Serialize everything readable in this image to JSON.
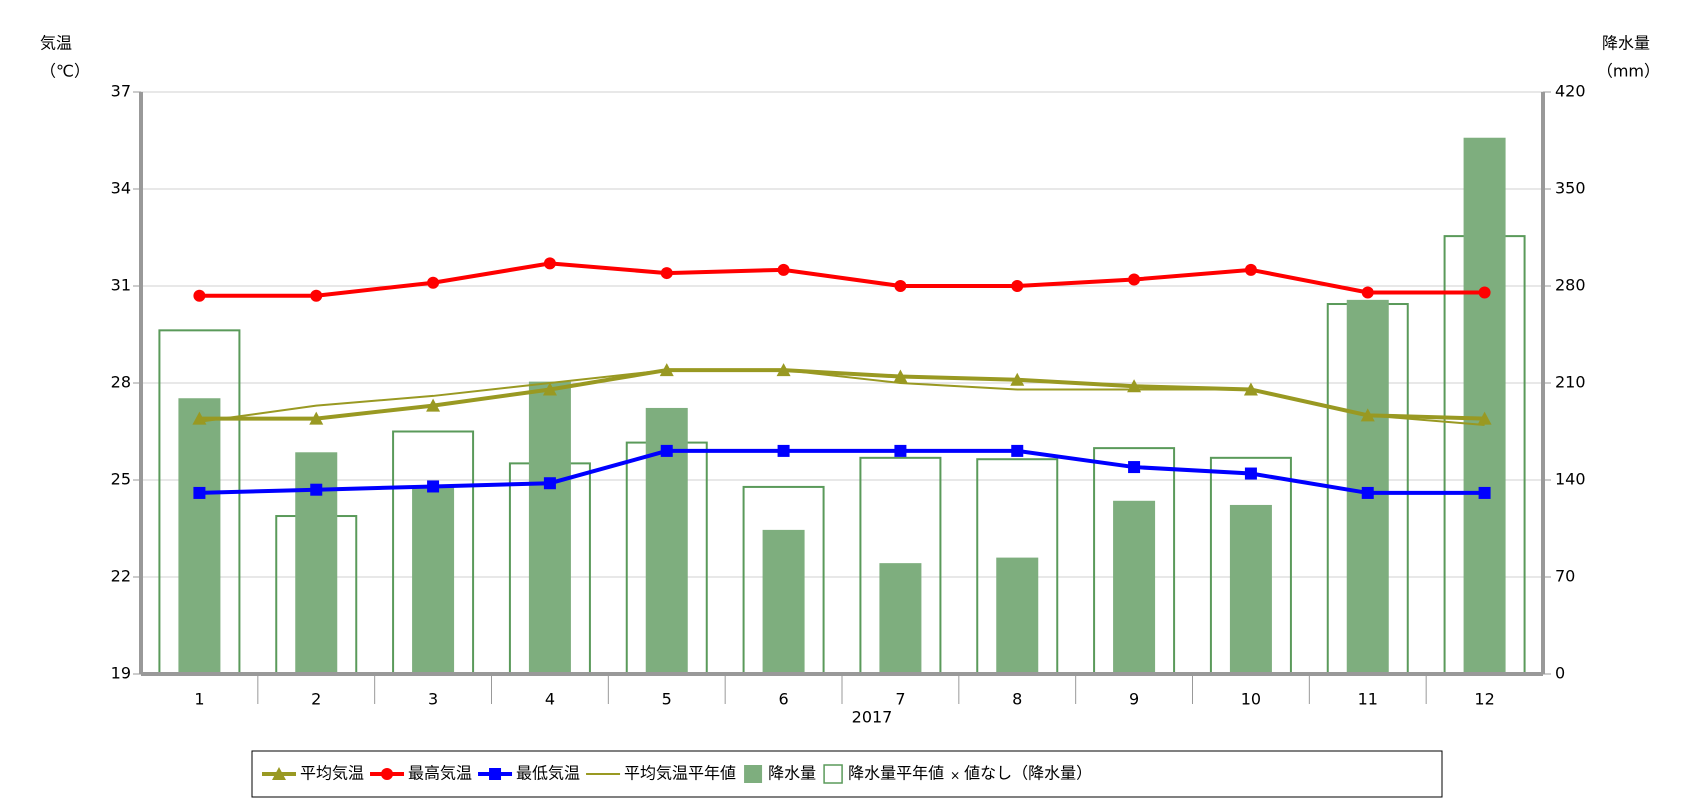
{
  "chart_data": {
    "type": "combo",
    "y_label": "気温",
    "y_unit": "（℃）",
    "y2_label": "降水量",
    "y2_unit": "（mm）",
    "x_label": "2017",
    "categories": [
      "1",
      "2",
      "3",
      "4",
      "5",
      "6",
      "7",
      "8",
      "9",
      "10",
      "11",
      "12"
    ],
    "ylim": [
      19,
      37
    ],
    "yticks": [
      19,
      22,
      25,
      28,
      31,
      34,
      37
    ],
    "y2lim": [
      0,
      420
    ],
    "y2ticks": [
      0,
      70,
      140,
      210,
      280,
      350,
      420
    ],
    "grid": true,
    "no_data_label": "値なし（降水量）",
    "series": [
      {
        "name": "平均気温",
        "type": "line",
        "marker": "triangle",
        "color": "#999922",
        "width": 4,
        "values": [
          26.9,
          26.9,
          27.3,
          27.8,
          28.4,
          28.4,
          28.2,
          28.1,
          27.9,
          27.8,
          27.0,
          26.9
        ]
      },
      {
        "name": "最高気温",
        "type": "line",
        "marker": "circle",
        "color": "#ff0000",
        "width": 4,
        "values": [
          30.7,
          30.7,
          31.1,
          31.7,
          31.4,
          31.5,
          31.0,
          31.0,
          31.2,
          31.5,
          30.8,
          30.8
        ]
      },
      {
        "name": "最低気温",
        "type": "line",
        "marker": "square",
        "color": "#0000ff",
        "width": 4,
        "values": [
          24.6,
          24.7,
          24.8,
          24.9,
          25.9,
          25.9,
          25.9,
          25.9,
          25.4,
          25.2,
          24.6,
          24.6
        ]
      },
      {
        "name": "平均気温平年値",
        "type": "line",
        "marker": "none",
        "color": "#999922",
        "width": 2,
        "values": [
          26.8,
          27.3,
          27.6,
          28.0,
          28.4,
          28.4,
          28.0,
          27.8,
          27.8,
          27.8,
          27.0,
          26.7
        ]
      },
      {
        "name": "降水量",
        "type": "bar",
        "axis": "y2",
        "color": "#7eae7e",
        "values": [
          199,
          160,
          136,
          211,
          192,
          104,
          80,
          84,
          125,
          122,
          270,
          387
        ]
      },
      {
        "name": "降水量平年値",
        "type": "bar-outline",
        "axis": "y2",
        "color": "#5a9a5a",
        "values": [
          248,
          114,
          175,
          152,
          167,
          135,
          156,
          155,
          163,
          156,
          267,
          316
        ]
      }
    ]
  }
}
